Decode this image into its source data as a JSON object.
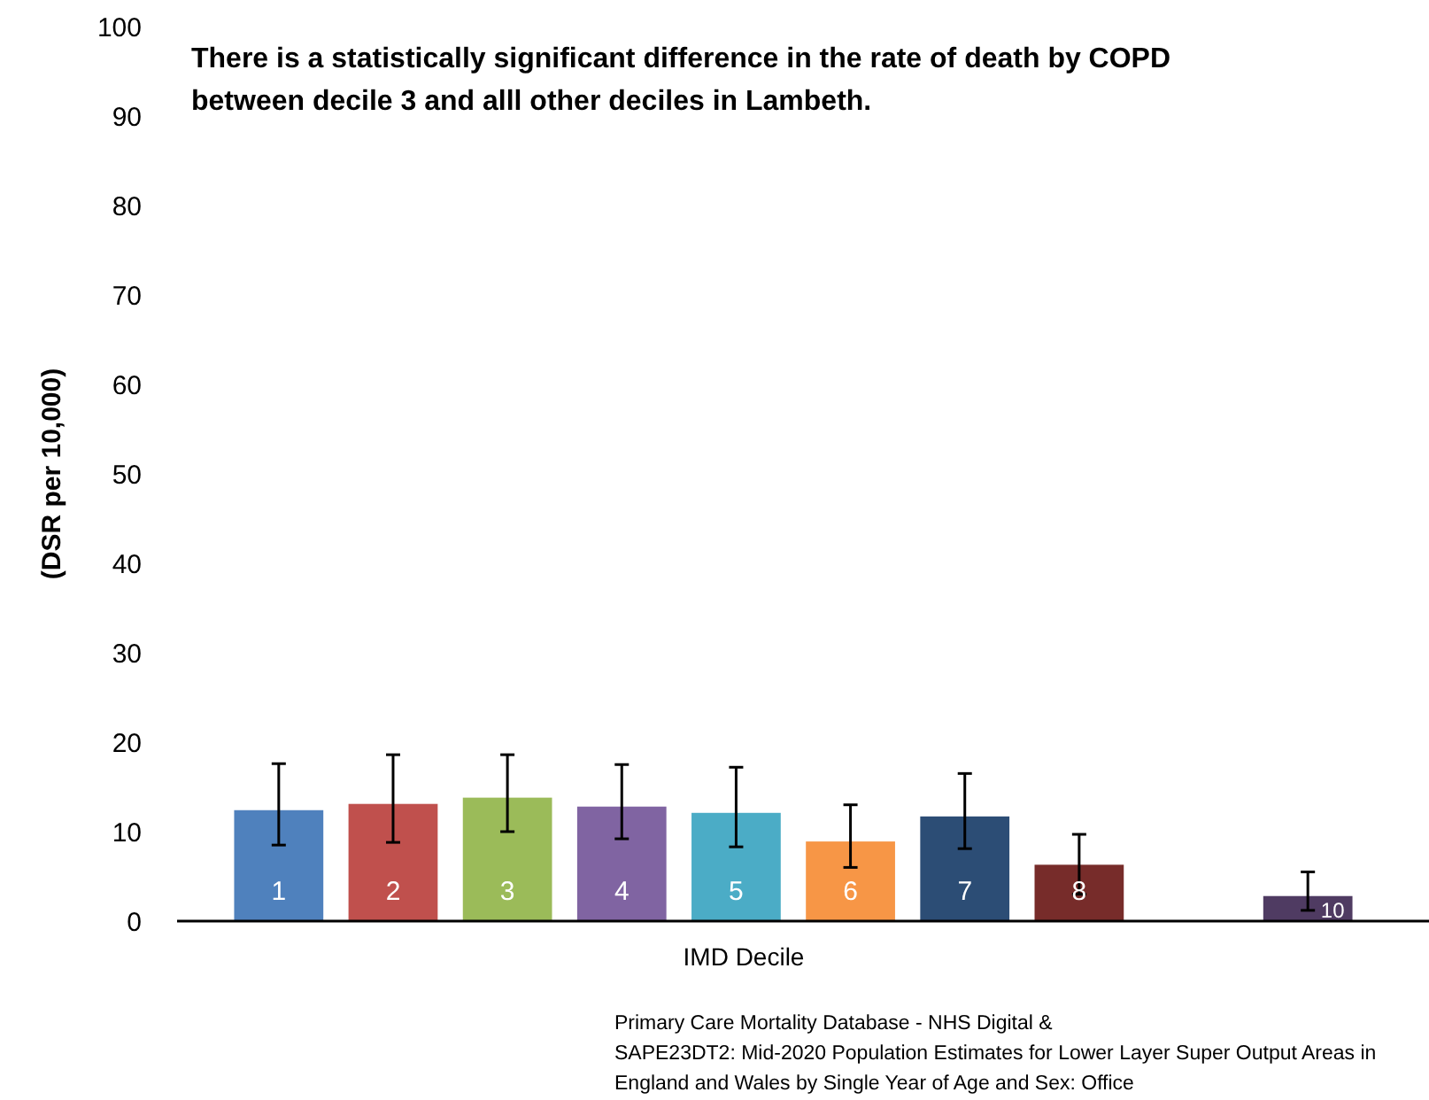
{
  "chart_data": {
    "type": "bar",
    "title": "There is a statistically significant difference in the rate of death by COPD between decile 3 and alll other deciles in Lambeth.",
    "xlabel": "IMD Decile",
    "ylabel": "(DSR per 10,000)",
    "annotations": [
      "Primary Care Mortality Database - NHS Digital &\nSAPE23DT2: Mid-2020 Population Estimates for Lower Layer Super Output Areas in England and Wales by Single Year of Age and Sex: Office"
    ],
    "categories": [
      "1",
      "2",
      "3",
      "4",
      "5",
      "6",
      "7",
      "8",
      null,
      "10"
    ],
    "values": [
      12.4,
      13.1,
      13.8,
      12.8,
      12.1,
      8.9,
      11.7,
      6.3,
      null,
      2.8
    ],
    "colors": [
      "#4f81bd",
      "#c0504d",
      "#9bbb59",
      "#8064a2",
      "#4bacc6",
      "#f79646",
      "#2c4d75",
      "#772c2a",
      null,
      "#4f3b62"
    ],
    "errors": [
      [
        8.5,
        17.6
      ],
      [
        8.8,
        18.6
      ],
      [
        10.0,
        18.6
      ],
      [
        9.2,
        17.5
      ],
      [
        8.3,
        17.2
      ],
      [
        6.0,
        13.0
      ],
      [
        8.1,
        16.5
      ],
      [
        3.0,
        9.7
      ],
      null,
      [
        1.2,
        5.5
      ]
    ],
    "ylim": [
      0,
      100
    ],
    "yticks": [
      0,
      10,
      20,
      30,
      40,
      50,
      60,
      70,
      80,
      90,
      100
    ],
    "grid": false
  }
}
